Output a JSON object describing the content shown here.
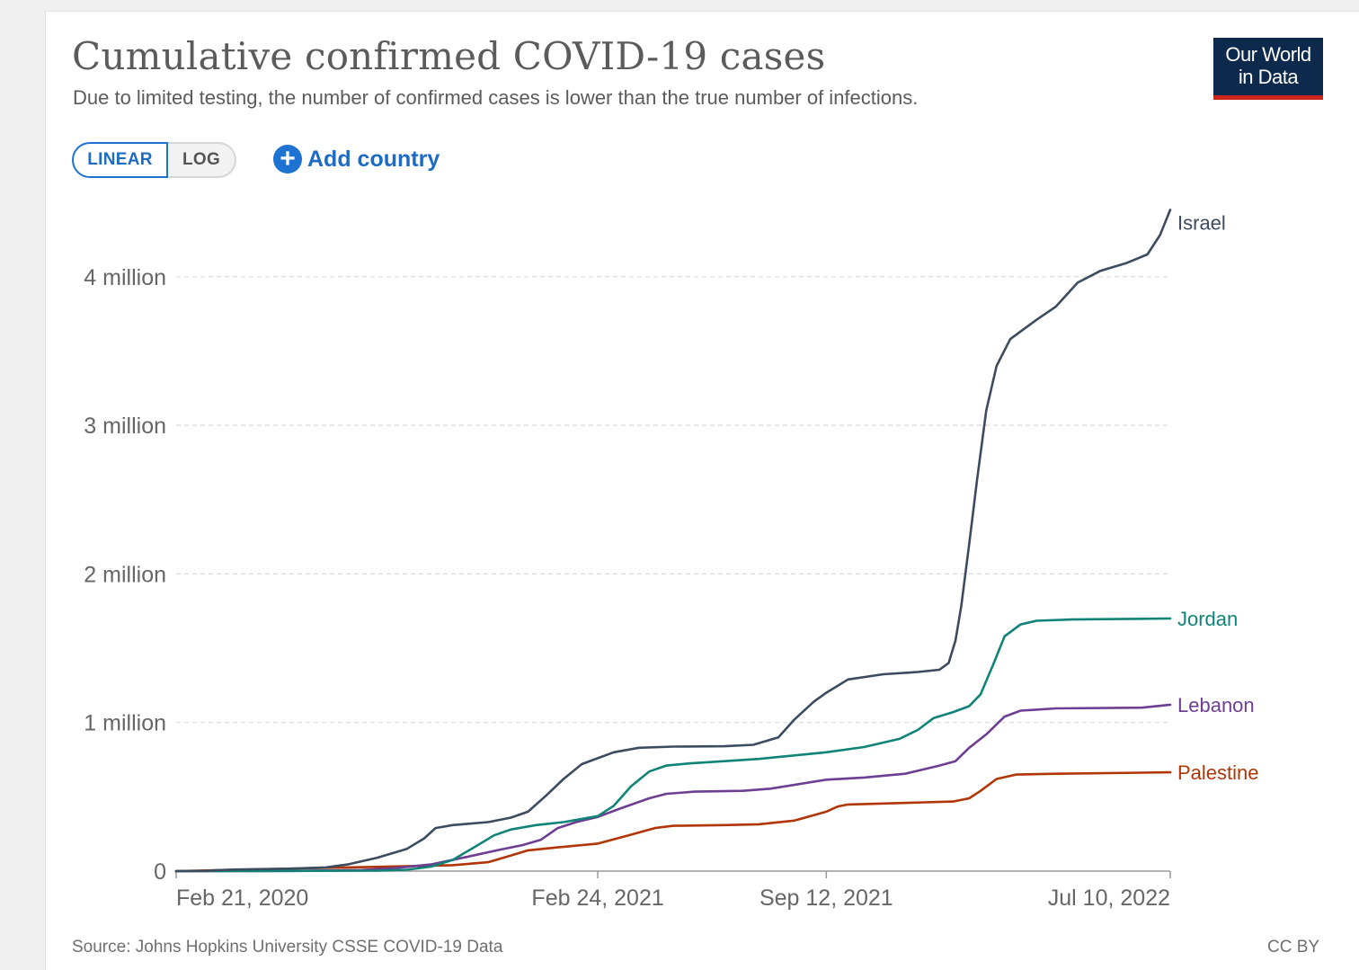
{
  "header": {
    "title": "Cumulative confirmed COVID-19 cases",
    "subtitle": "Due to limited testing, the number of confirmed cases is lower than the true number of infections.",
    "logo_line1": "Our World",
    "logo_line2": "in Data"
  },
  "controls": {
    "linear_label": "LINEAR",
    "log_label": "LOG",
    "active_scale": "linear",
    "add_country_label": "Add country",
    "add_icon": "plus-circle-icon"
  },
  "footer": {
    "source": "Source: Johns Hopkins University CSSE COVID-19 Data",
    "license": "CC BY"
  },
  "colors": {
    "accent": "#1d72d2",
    "logo_bg": "#0d2a4d",
    "logo_bar": "#ce261e"
  },
  "chart_data": {
    "type": "line",
    "x_axis": {
      "start": "2020-02-21",
      "end": "2022-07-10",
      "ticks": [
        {
          "date": "2020-02-21",
          "label": "Feb 21, 2020"
        },
        {
          "date": "2021-02-24",
          "label": "Feb 24, 2021"
        },
        {
          "date": "2021-09-12",
          "label": "Sep 12, 2021"
        },
        {
          "date": "2022-07-10",
          "label": "Jul 10, 2022"
        }
      ]
    },
    "y_axis": {
      "ylim": [
        0,
        4450000
      ],
      "ticks": [
        {
          "value": 0,
          "label": "0"
        },
        {
          "value": 1000000,
          "label": "1 million"
        },
        {
          "value": 2000000,
          "label": "2 million"
        },
        {
          "value": 3000000,
          "label": "3 million"
        },
        {
          "value": 4000000,
          "label": "4 million"
        }
      ],
      "grid": true
    },
    "legend": "end-of-line labels",
    "series": [
      {
        "name": "Israel",
        "color": "#3c4b5e",
        "points": [
          [
            "2020-02-21",
            0
          ],
          [
            "2020-03-15",
            1000
          ],
          [
            "2020-04-10",
            10000
          ],
          [
            "2020-06-01",
            17000
          ],
          [
            "2020-07-01",
            25000
          ],
          [
            "2020-07-20",
            45000
          ],
          [
            "2020-08-15",
            90000
          ],
          [
            "2020-09-10",
            150000
          ],
          [
            "2020-09-25",
            220000
          ],
          [
            "2020-10-05",
            290000
          ],
          [
            "2020-10-20",
            310000
          ],
          [
            "2020-11-20",
            330000
          ],
          [
            "2020-12-10",
            360000
          ],
          [
            "2020-12-25",
            400000
          ],
          [
            "2021-01-10",
            510000
          ],
          [
            "2021-01-25",
            620000
          ],
          [
            "2021-02-10",
            720000
          ],
          [
            "2021-02-24",
            760000
          ],
          [
            "2021-03-10",
            800000
          ],
          [
            "2021-04-01",
            830000
          ],
          [
            "2021-05-01",
            838000
          ],
          [
            "2021-06-15",
            840000
          ],
          [
            "2021-07-10",
            850000
          ],
          [
            "2021-08-01",
            900000
          ],
          [
            "2021-08-15",
            1020000
          ],
          [
            "2021-09-01",
            1140000
          ],
          [
            "2021-09-12",
            1200000
          ],
          [
            "2021-10-01",
            1290000
          ],
          [
            "2021-11-01",
            1325000
          ],
          [
            "2021-12-01",
            1340000
          ],
          [
            "2021-12-20",
            1355000
          ],
          [
            "2021-12-28",
            1400000
          ],
          [
            "2022-01-03",
            1550000
          ],
          [
            "2022-01-08",
            1780000
          ],
          [
            "2022-01-15",
            2200000
          ],
          [
            "2022-01-22",
            2640000
          ],
          [
            "2022-01-30",
            3100000
          ],
          [
            "2022-02-08",
            3400000
          ],
          [
            "2022-02-20",
            3580000
          ],
          [
            "2022-03-15",
            3710000
          ],
          [
            "2022-04-01",
            3800000
          ],
          [
            "2022-04-20",
            3960000
          ],
          [
            "2022-05-10",
            4040000
          ],
          [
            "2022-06-01",
            4090000
          ],
          [
            "2022-06-20",
            4150000
          ],
          [
            "2022-07-01",
            4280000
          ],
          [
            "2022-07-10",
            4450000
          ]
        ]
      },
      {
        "name": "Jordan",
        "color": "#108378",
        "points": [
          [
            "2020-02-21",
            0
          ],
          [
            "2020-06-01",
            1000
          ],
          [
            "2020-08-15",
            3000
          ],
          [
            "2020-09-10",
            9000
          ],
          [
            "2020-10-01",
            30000
          ],
          [
            "2020-10-20",
            75000
          ],
          [
            "2020-11-10",
            170000
          ],
          [
            "2020-11-25",
            240000
          ],
          [
            "2020-12-10",
            280000
          ],
          [
            "2021-01-01",
            310000
          ],
          [
            "2021-01-25",
            330000
          ],
          [
            "2021-02-24",
            370000
          ],
          [
            "2021-03-10",
            440000
          ],
          [
            "2021-03-25",
            570000
          ],
          [
            "2021-04-10",
            670000
          ],
          [
            "2021-04-25",
            710000
          ],
          [
            "2021-05-15",
            725000
          ],
          [
            "2021-06-15",
            740000
          ],
          [
            "2021-07-15",
            755000
          ],
          [
            "2021-09-12",
            800000
          ],
          [
            "2021-10-15",
            835000
          ],
          [
            "2021-11-15",
            890000
          ],
          [
            "2021-12-01",
            950000
          ],
          [
            "2021-12-15",
            1030000
          ],
          [
            "2022-01-01",
            1070000
          ],
          [
            "2022-01-15",
            1110000
          ],
          [
            "2022-01-25",
            1190000
          ],
          [
            "2022-02-05",
            1390000
          ],
          [
            "2022-02-15",
            1580000
          ],
          [
            "2022-03-01",
            1660000
          ],
          [
            "2022-03-15",
            1685000
          ],
          [
            "2022-04-15",
            1693000
          ],
          [
            "2022-07-10",
            1700000
          ]
        ]
      },
      {
        "name": "Lebanon",
        "color": "#6d3e91",
        "points": [
          [
            "2020-02-21",
            0
          ],
          [
            "2020-06-01",
            1500
          ],
          [
            "2020-08-01",
            7000
          ],
          [
            "2020-09-01",
            22000
          ],
          [
            "2020-10-01",
            45000
          ],
          [
            "2020-11-01",
            95000
          ],
          [
            "2020-12-01",
            145000
          ],
          [
            "2020-12-20",
            175000
          ],
          [
            "2021-01-05",
            210000
          ],
          [
            "2021-01-20",
            290000
          ],
          [
            "2021-02-05",
            330000
          ],
          [
            "2021-02-24",
            365000
          ],
          [
            "2021-03-15",
            420000
          ],
          [
            "2021-04-10",
            490000
          ],
          [
            "2021-04-25",
            520000
          ],
          [
            "2021-05-20",
            535000
          ],
          [
            "2021-07-01",
            540000
          ],
          [
            "2021-07-25",
            555000
          ],
          [
            "2021-09-12",
            615000
          ],
          [
            "2021-10-15",
            630000
          ],
          [
            "2021-11-20",
            655000
          ],
          [
            "2021-12-20",
            710000
          ],
          [
            "2022-01-03",
            740000
          ],
          [
            "2022-01-15",
            830000
          ],
          [
            "2022-01-30",
            920000
          ],
          [
            "2022-02-15",
            1040000
          ],
          [
            "2022-03-01",
            1080000
          ],
          [
            "2022-04-01",
            1095000
          ],
          [
            "2022-06-15",
            1100000
          ],
          [
            "2022-07-10",
            1120000
          ]
        ]
      },
      {
        "name": "Palestine",
        "color": "#b13507",
        "points": [
          [
            "2020-02-21",
            0
          ],
          [
            "2020-10-20",
            40000
          ],
          [
            "2020-11-20",
            60000
          ],
          [
            "2020-12-10",
            105000
          ],
          [
            "2020-12-25",
            140000
          ],
          [
            "2021-01-20",
            160000
          ],
          [
            "2021-02-24",
            185000
          ],
          [
            "2021-03-20",
            235000
          ],
          [
            "2021-04-15",
            290000
          ],
          [
            "2021-05-01",
            305000
          ],
          [
            "2021-06-15",
            310000
          ],
          [
            "2021-07-15",
            315000
          ],
          [
            "2021-08-15",
            340000
          ],
          [
            "2021-09-12",
            400000
          ],
          [
            "2021-09-22",
            435000
          ],
          [
            "2021-10-01",
            448000
          ],
          [
            "2021-11-15",
            458000
          ],
          [
            "2022-01-01",
            468000
          ],
          [
            "2022-01-15",
            490000
          ],
          [
            "2022-01-25",
            540000
          ],
          [
            "2022-02-08",
            620000
          ],
          [
            "2022-02-25",
            650000
          ],
          [
            "2022-04-01",
            655000
          ],
          [
            "2022-07-10",
            665000
          ]
        ]
      }
    ]
  }
}
